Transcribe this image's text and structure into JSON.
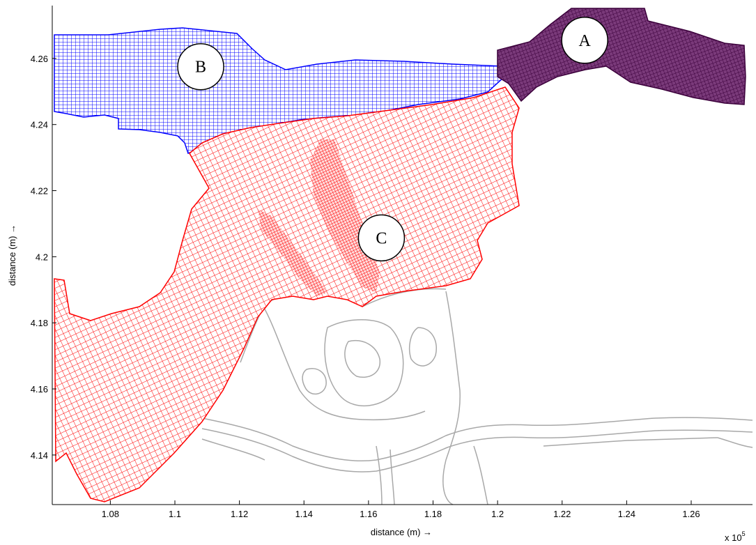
{
  "axes": {
    "xlabel": "distance (m) →",
    "ylabel": "distance (m) →",
    "x_multiplier": "x 10",
    "x_multiplier_exp": "5",
    "xlim": [
      1.062,
      1.279
    ],
    "ylim": [
      4.125,
      4.276
    ],
    "xticks": [
      "1.08",
      "1.1",
      "1.12",
      "1.14",
      "1.16",
      "1.18",
      "1.2",
      "1.22",
      "1.24",
      "1.26"
    ],
    "yticks": [
      "4.14",
      "4.16",
      "4.18",
      "4.2",
      "4.22",
      "4.24",
      "4.26"
    ]
  },
  "domains": [
    {
      "label": "A",
      "color": "#4a0d4a",
      "x": 1.227,
      "y": 4.2655
    },
    {
      "label": "B",
      "color": "#0000ff",
      "x": 1.108,
      "y": 4.2575
    },
    {
      "label": "C",
      "color": "#ff0000",
      "x": 1.164,
      "y": 4.2057
    }
  ],
  "colors": {
    "background_outline": "#a8a8a8",
    "axis": "#000000"
  }
}
